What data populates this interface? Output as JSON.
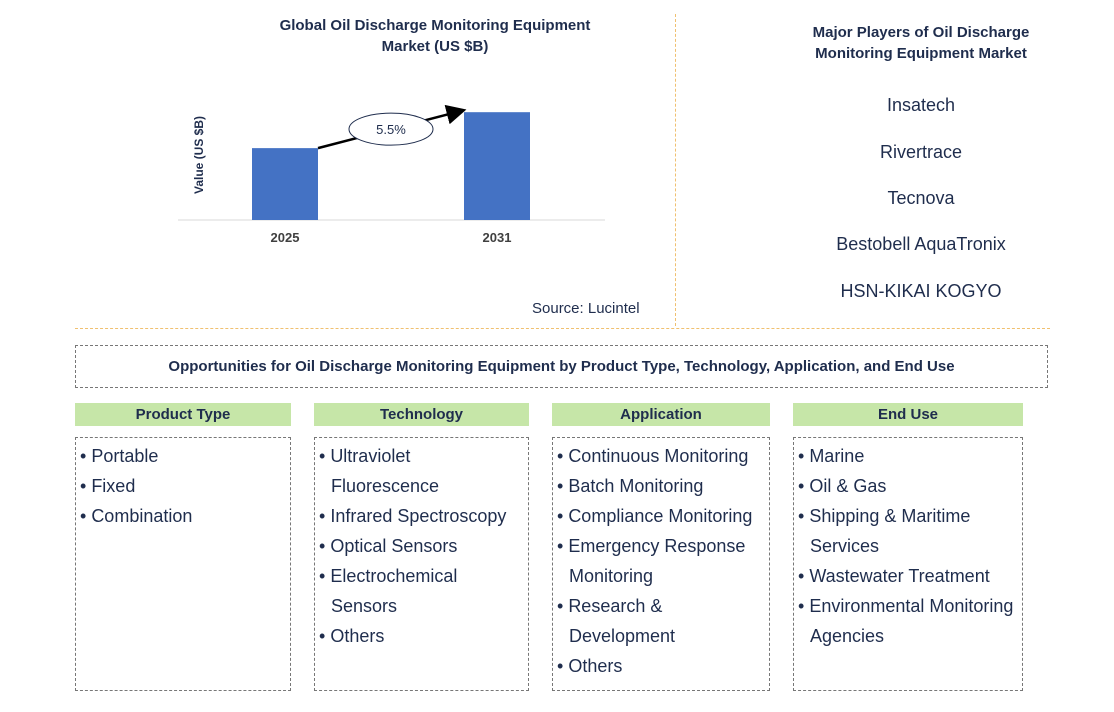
{
  "chart": {
    "title_line1": "Global Oil Discharge Monitoring Equipment",
    "title_line2": "Market (US $B)",
    "source": "Source: Lucintel"
  },
  "chart_data": {
    "type": "bar",
    "categories": [
      "2025",
      "2031"
    ],
    "values": [
      1.0,
      1.5
    ],
    "ylabel": "Value (US $B)",
    "ylim": [
      0,
      1.6
    ],
    "annotation": "5.5%",
    "bar_color": "#4472c4",
    "grid": false
  },
  "players": {
    "title": "Major Players of Oil Discharge Monitoring Equipment Market",
    "items": [
      "Insatech",
      "Rivertrace",
      "Tecnova",
      "Bestobell AquaTronix",
      "HSN-KIKAI KOGYO"
    ]
  },
  "opportunities": {
    "title": "Opportunities for Oil Discharge Monitoring Equipment by Product Type, Technology, Application, and End Use",
    "header_color": "#c6e6a8",
    "categories": [
      {
        "header": "Product Type",
        "items": [
          "Portable",
          "Fixed",
          "Combination"
        ]
      },
      {
        "header": "Technology",
        "items": [
          "Ultraviolet Fluorescence",
          "Infrared Spectroscopy",
          "Optical Sensors",
          "Electrochemical Sensors",
          "Others"
        ]
      },
      {
        "header": "Application",
        "items": [
          "Continuous Monitoring",
          "Batch Monitoring",
          "Compliance Monitoring",
          "Emergency Response Monitoring",
          "Research & Development",
          "Others"
        ]
      },
      {
        "header": "End Use",
        "items": [
          "Marine",
          "Oil & Gas",
          "Shipping & Maritime Services",
          "Wastewater Treatment",
          "Environmental Monitoring Agencies"
        ]
      }
    ]
  }
}
